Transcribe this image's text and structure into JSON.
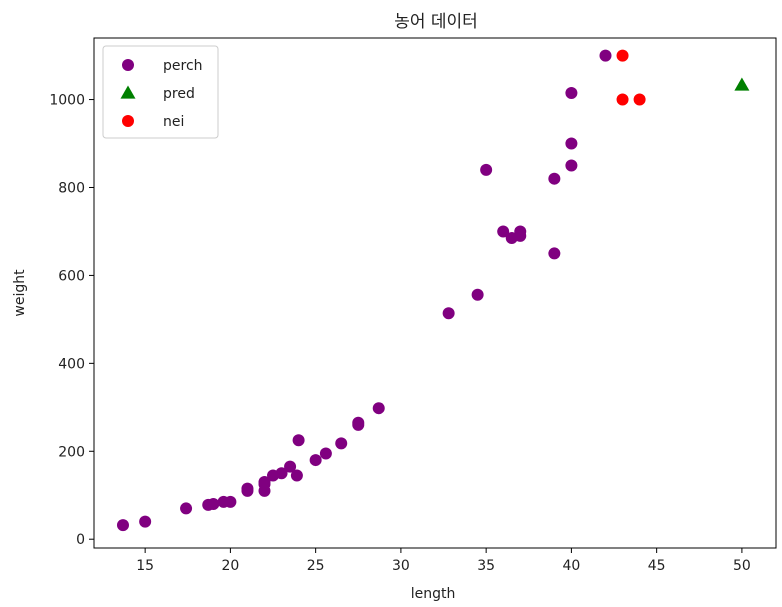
{
  "chart_data": {
    "type": "scatter",
    "title": "농어 데이터",
    "xlabel": "length",
    "ylabel": "weight",
    "xlim": [
      12,
      52
    ],
    "ylim": [
      -20,
      1140
    ],
    "xticks": [
      15,
      20,
      25,
      30,
      35,
      40,
      45,
      50
    ],
    "yticks": [
      0,
      200,
      400,
      600,
      800,
      1000
    ],
    "grid": false,
    "legend_placement": "top-left",
    "series": [
      {
        "name": "perch",
        "marker": "circle",
        "color": "#800080",
        "points": [
          [
            13.7,
            32
          ],
          [
            15.0,
            40
          ],
          [
            17.4,
            70
          ],
          [
            18.7,
            78
          ],
          [
            19.0,
            80
          ],
          [
            19.6,
            85
          ],
          [
            20.0,
            85
          ],
          [
            21.0,
            110
          ],
          [
            21.0,
            115
          ],
          [
            22.0,
            125
          ],
          [
            22.0,
            130
          ],
          [
            22.0,
            110
          ],
          [
            22.5,
            145
          ],
          [
            23.0,
            150
          ],
          [
            23.5,
            165
          ],
          [
            23.9,
            145
          ],
          [
            24.0,
            225
          ],
          [
            25.0,
            180
          ],
          [
            25.6,
            195
          ],
          [
            26.5,
            218
          ],
          [
            27.5,
            260
          ],
          [
            27.5,
            265
          ],
          [
            28.7,
            298
          ],
          [
            32.8,
            514
          ],
          [
            34.5,
            556
          ],
          [
            35.0,
            840
          ],
          [
            36.0,
            700
          ],
          [
            36.5,
            685
          ],
          [
            37.0,
            690
          ],
          [
            37.0,
            700
          ],
          [
            39.0,
            820
          ],
          [
            39.0,
            650
          ],
          [
            40.0,
            850
          ],
          [
            40.0,
            900
          ],
          [
            40.0,
            1015
          ],
          [
            42.0,
            1100
          ]
        ]
      },
      {
        "name": "pred",
        "marker": "triangle",
        "color": "#008000",
        "points": [
          [
            50,
            1033
          ]
        ]
      },
      {
        "name": "nei",
        "marker": "circle",
        "color": "#ff0000",
        "points": [
          [
            43.0,
            1100
          ],
          [
            43.0,
            1000
          ],
          [
            44.0,
            1000
          ]
        ]
      }
    ]
  }
}
